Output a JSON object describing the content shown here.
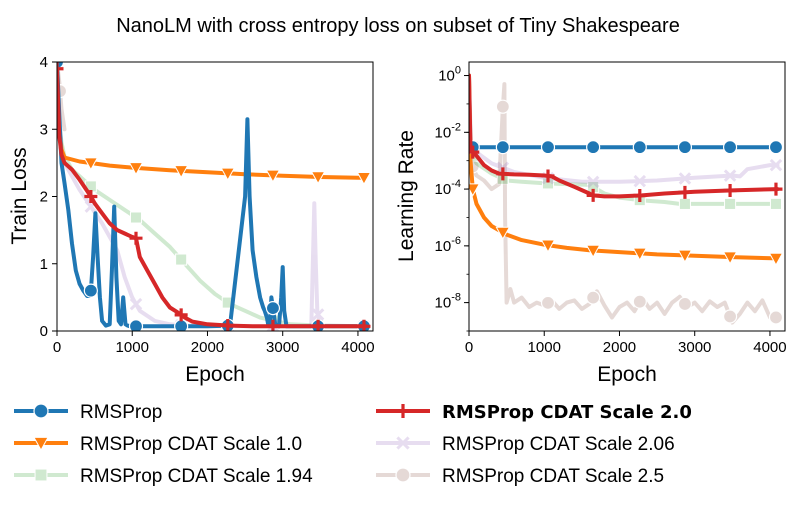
{
  "chart_data": {
    "type": "line",
    "title": "NanoLM with cross entropy loss on subset of Tiny Shakespeare",
    "series_styles": [
      {
        "name": "RMSProp",
        "color": "#1f77b4",
        "marker": "circle",
        "opacity": 1.0,
        "bold": false
      },
      {
        "name": "RMSProp CDAT Scale 1.0",
        "color": "#ff7f0e",
        "marker": "triangle-down",
        "opacity": 1.0,
        "bold": false
      },
      {
        "name": "RMSProp CDAT Scale 1.94",
        "color": "#2ca02c",
        "marker": "square",
        "opacity": 0.22,
        "bold": false
      },
      {
        "name": "RMSProp CDAT Scale 2.0",
        "color": "#d62728",
        "marker": "plus",
        "opacity": 1.0,
        "bold": true
      },
      {
        "name": "RMSProp CDAT Scale 2.06",
        "color": "#9467bd",
        "marker": "x",
        "opacity": 0.22,
        "bold": false
      },
      {
        "name": "RMSProp CDAT Scale 2.5",
        "color": "#8c564b",
        "marker": "circle",
        "opacity": 0.22,
        "bold": false
      }
    ],
    "legend": {
      "placement": "bottom",
      "entries": [
        "RMSProp",
        "RMSProp CDAT Scale 2.0",
        "RMSProp CDAT Scale 1.0",
        "RMSProp CDAT Scale 2.06",
        "RMSProp CDAT Scale 1.94",
        "RMSProp CDAT Scale 2.5"
      ]
    },
    "panels": [
      {
        "id": "train-loss",
        "xlabel": "Epoch",
        "ylabel": "Train Loss",
        "xlim": [
          0,
          4200
        ],
        "ylim": [
          0,
          4
        ],
        "yscale": "linear",
        "xticks": [
          0,
          1000,
          2000,
          3000,
          4000
        ],
        "xtick_labels": [
          "0",
          "1000",
          "2000",
          "3000",
          "4000"
        ],
        "yticks": [
          0,
          1,
          2,
          3,
          4
        ],
        "ytick_labels": [
          "0",
          "1",
          "2",
          "3",
          "4"
        ],
        "series": [
          {
            "name": "RMSProp",
            "x": [
              0,
              30,
              60,
              100,
              150,
              200,
              250,
              300,
              350,
              400,
              430,
              450,
              480,
              510,
              540,
              570,
              600,
              650,
              700,
              730,
              760,
              790,
              820,
              850,
              880,
              910,
              940,
              970,
              1000,
              1100,
              1200,
              1500,
              1700,
              2000,
              2300,
              2500,
              2530,
              2560,
              2600,
              2650,
              2700,
              2740,
              2760,
              2790,
              2810,
              2830,
              2850,
              2900,
              2950,
              2980,
              3000,
              3020,
              3050,
              3100,
              3500,
              4000,
              4100
            ],
            "y": [
              4.0,
              3.2,
              2.5,
              2.2,
              1.8,
              1.3,
              0.9,
              0.7,
              0.6,
              0.52,
              0.52,
              0.6,
              1.1,
              1.75,
              1.1,
              0.5,
              0.15,
              0.08,
              0.1,
              0.9,
              1.85,
              0.8,
              0.15,
              0.1,
              0.5,
              0.1,
              0.08,
              0.07,
              0.07,
              0.07,
              0.07,
              0.07,
              0.07,
              0.07,
              0.08,
              2.0,
              3.15,
              2.0,
              1.2,
              0.8,
              0.5,
              0.35,
              0.3,
              0.2,
              0.08,
              0.12,
              0.5,
              0.1,
              0.07,
              0.5,
              0.95,
              0.3,
              0.07,
              0.07,
              0.07,
              0.07,
              0.07
            ],
            "marker_x": [
              0,
              450,
              1050,
              1650,
              2270,
              2870,
              3470,
              4080
            ]
          },
          {
            "name": "RMSProp CDAT Scale 1.0",
            "x": [
              0,
              30,
              60,
              100,
              200,
              300,
              500,
              700,
              1000,
              1500,
              2000,
              2500,
              3000,
              3500,
              4000,
              4100
            ],
            "y": [
              3.9,
              3.0,
              2.7,
              2.58,
              2.55,
              2.52,
              2.49,
              2.46,
              2.43,
              2.39,
              2.36,
              2.33,
              2.31,
              2.29,
              2.28,
              2.28
            ],
            "marker_x": [
              0,
              450,
              1050,
              1650,
              2270,
              2870,
              3470,
              4080
            ]
          },
          {
            "name": "RMSProp CDAT Scale 1.94",
            "x": [
              0,
              30,
              60,
              100,
              200,
              300,
              500,
              700,
              900,
              1100,
              1300,
              1500,
              1700,
              1900,
              2100,
              2300,
              2500,
              2700,
              2900,
              3100,
              3500,
              4100
            ],
            "y": [
              4.0,
              3.1,
              2.8,
              2.6,
              2.4,
              2.3,
              2.1,
              1.95,
              1.8,
              1.65,
              1.45,
              1.25,
              1.0,
              0.75,
              0.55,
              0.4,
              0.3,
              0.2,
              0.15,
              0.1,
              0.08,
              0.07
            ],
            "marker_x": [
              0,
              450,
              1050,
              1650,
              2270,
              2870,
              3470,
              4080
            ]
          },
          {
            "name": "RMSProp CDAT Scale 2.0",
            "x": [
              0,
              30,
              60,
              100,
              200,
              300,
              450,
              500,
              600,
              700,
              800,
              900,
              1000,
              1050,
              1100,
              1200,
              1300,
              1400,
              1500,
              1600,
              1700,
              1800,
              2000,
              2300,
              2600,
              2900,
              3300,
              3600,
              4100
            ],
            "y": [
              3.9,
              2.9,
              2.62,
              2.5,
              2.4,
              2.25,
              2.0,
              1.9,
              1.75,
              1.6,
              1.5,
              1.45,
              1.4,
              1.38,
              1.1,
              0.9,
              0.7,
              0.5,
              0.35,
              0.28,
              0.2,
              0.14,
              0.1,
              0.08,
              0.07,
              0.07,
              0.07,
              0.07,
              0.07
            ],
            "marker_x": [
              0,
              450,
              1050,
              1650,
              2270,
              2870,
              3470,
              4080
            ]
          },
          {
            "name": "RMSProp CDAT Scale 2.06",
            "x": [
              0,
              30,
              60,
              100,
              300,
              600,
              800,
              900,
              1000,
              1100,
              1300,
              1500,
              1700,
              2000,
              2500,
              3000,
              3380,
              3420,
              3440,
              3460,
              3500,
              4100
            ],
            "y": [
              4.0,
              3.2,
              2.7,
              2.5,
              2.1,
              1.6,
              1.2,
              0.8,
              0.5,
              0.3,
              0.15,
              0.1,
              0.08,
              0.07,
              0.07,
              0.07,
              0.07,
              1.9,
              1.0,
              0.3,
              0.08,
              0.07
            ],
            "marker_x": [
              0,
              450,
              1050,
              1650,
              2270,
              2870,
              3470,
              4080
            ]
          },
          {
            "name": "RMSProp CDAT Scale 2.5",
            "x": [
              0,
              30,
              60,
              100
            ],
            "y": [
              4.0,
              3.7,
              3.3,
              3.0
            ],
            "marker_x": [
              40
            ]
          }
        ]
      },
      {
        "id": "learning-rate",
        "xlabel": "Epoch",
        "ylabel": "Learning Rate",
        "xlim": [
          0,
          4200
        ],
        "ylim": [
          1e-09,
          3.0
        ],
        "yscale": "log",
        "xticks": [
          0,
          1000,
          2000,
          3000,
          4000
        ],
        "xtick_labels": [
          "0",
          "1000",
          "2000",
          "3000",
          "4000"
        ],
        "yticks": [
          1.0,
          0.01,
          0.0001,
          1e-06,
          1e-08
        ],
        "ytick_labels": [
          {
            "base": "10",
            "exp": "0"
          },
          {
            "base": "10",
            "exp": "-2"
          },
          {
            "base": "10",
            "exp": "-4"
          },
          {
            "base": "10",
            "exp": "-6"
          },
          {
            "base": "10",
            "exp": "-8"
          }
        ],
        "series": [
          {
            "name": "RMSProp",
            "x": [
              0,
              4100
            ],
            "y": [
              0.003,
              0.003
            ],
            "marker_x": [
              50,
              450,
              1050,
              1650,
              2270,
              2870,
              3470,
              4080
            ]
          },
          {
            "name": "RMSProp CDAT Scale 1.0",
            "x": [
              0,
              20,
              50,
              100,
              200,
              300,
              500,
              700,
              1000,
              1300,
              1600,
              2000,
              2500,
              3000,
              3500,
              4100
            ],
            "y": [
              1.0,
              0.001,
              0.0001,
              3e-05,
              1e-05,
              5e-06,
              2.5e-06,
              1.6e-06,
              1.1e-06,
              8.5e-07,
              7e-07,
              6e-07,
              5e-07,
              4.5e-07,
              4e-07,
              3.6e-07
            ],
            "marker_x": [
              50,
              450,
              1050,
              1650,
              2270,
              2870,
              3470,
              4080
            ]
          },
          {
            "name": "RMSProp CDAT Scale 1.94",
            "x": [
              0,
              20,
              50,
              100,
              300,
              500,
              700,
              1000,
              1300,
              1600,
              1800,
              2000,
              2300,
              2600,
              2800,
              3000,
              3500,
              4100
            ],
            "y": [
              1.0,
              0.003,
              0.0015,
              0.0008,
              0.00035,
              0.0002,
              0.00018,
              0.00016,
              0.00015,
              0.00014,
              7e-05,
              5e-05,
              4e-05,
              3.5e-05,
              3e-05,
              3e-05,
              3e-05,
              3e-05
            ],
            "marker_x": [
              50,
              450,
              1050,
              1650,
              2270,
              2870,
              3470,
              4080
            ]
          },
          {
            "name": "RMSProp CDAT Scale 2.0",
            "x": [
              0,
              20,
              50,
              100,
              200,
              300,
              400,
              600,
              800,
              1000,
              1100,
              1200,
              1400,
              1600,
              1650,
              1800,
              2000,
              2300,
              2600,
              3000,
              3500,
              4100
            ],
            "y": [
              1.0,
              0.003,
              0.002,
              0.0015,
              0.0007,
              0.00045,
              0.00035,
              0.00033,
              0.00032,
              0.0003,
              0.00028,
              0.0002,
              0.00012,
              7e-05,
              6e-05,
              5.5e-05,
              5.5e-05,
              6e-05,
              7e-05,
              8e-05,
              9e-05,
              0.0001
            ],
            "marker_x": [
              50,
              450,
              1050,
              1650,
              2270,
              2870,
              3470,
              4080
            ]
          },
          {
            "name": "RMSProp CDAT Scale 2.06",
            "x": [
              0,
              20,
              50,
              100,
              300,
              600,
              1000,
              1500,
              2000,
              2500,
              3000,
              3500,
              3600,
              3700,
              4000,
              4100
            ],
            "y": [
              1.0,
              0.005,
              0.003,
              0.002,
              0.0008,
              0.0004,
              0.00025,
              0.00018,
              0.00018,
              0.0002,
              0.00025,
              0.0003,
              0.00028,
              0.0005,
              0.0007,
              0.0007
            ],
            "marker_x": [
              50,
              450,
              1050,
              1650,
              2270,
              2870,
              3470,
              4080
            ]
          },
          {
            "name": "RMSProp CDAT Scale 2.5",
            "x": [
              0,
              30,
              60,
              100,
              200,
              300,
              400,
              450,
              470,
              480,
              500,
              550,
              600,
              700,
              800,
              900,
              1000,
              1100,
              1200,
              1300,
              1400,
              1500,
              1600,
              1700,
              1800,
              1900,
              2000,
              2100,
              2200,
              2300,
              2400,
              2500,
              2600,
              2700,
              2800,
              2900,
              3000,
              3100,
              3200,
              3300,
              3400,
              3500,
              3600,
              3700,
              3800,
              3900,
              4000,
              4100
            ],
            "y": [
              1.0,
              0.001,
              0.0005,
              0.0003,
              0.0002,
              0.0001,
              0.00015,
              0.08,
              0.5,
              1e-05,
              1e-08,
              3e-08,
              1e-08,
              1.5e-08,
              7e-09,
              1e-08,
              8e-09,
              1.2e-08,
              6e-09,
              1e-08,
              1.2e-08,
              6e-09,
              9e-09,
              2.5e-08,
              8e-09,
              3e-09,
              7e-09,
              1e-08,
              5e-09,
              1.5e-08,
              6e-09,
              1e-08,
              4e-09,
              1e-08,
              1.6e-08,
              7e-09,
              1e-08,
              5e-09,
              1.1e-08,
              7e-09,
              1e-08,
              2e-09,
              4e-09,
              1e-08,
              5e-09,
              1.2e-08,
              3e-09,
              3e-09
            ],
            "marker_x": [
              50,
              450,
              1050,
              1650,
              2270,
              2870,
              3470,
              4080
            ]
          }
        ]
      }
    ]
  }
}
